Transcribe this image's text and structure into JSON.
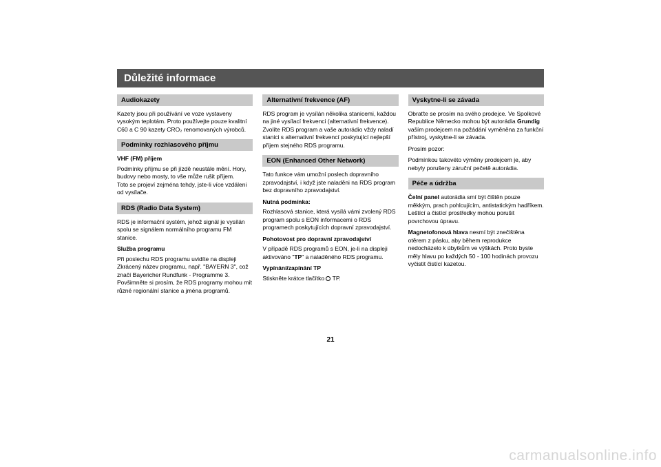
{
  "page": {
    "title": "Důležité informace",
    "number": "21",
    "watermark": "carmanualsonline.info"
  },
  "col1": {
    "h_audio": "Audiokazety",
    "p_audio": "Kazety jsou při používání ve voze vystaveny vysokým teplotám. Proto používejte pouze kvalitní C60 a C 90 kazety CRO₂ renomovaných výrobců.",
    "h_radio": "Podmínky rozhlasového příjmu",
    "sub_vhf": "VHF (FM) příjem",
    "p_vhf1": "Podmínky příjmu se při jízdě neustále mění. Hory, budovy nebo mosty, to vše může rušit příjem.",
    "p_vhf2": "Toto se projeví zejména tehdy, jste-li více vzdáleni od vysílače.",
    "h_rds": "RDS (Radio Data System)",
    "p_rds": "RDS je informační systém, jehož signál je vysílán spolu se signálem normálního programu FM stanice.",
    "sub_sluzba": "Služba programu",
    "p_sluzba": "Při poslechu RDS programu uvidíte na displeji Zkrácený název programu, např. \"BAYERN 3\", což značí Bayericher Rundfunk - Programme 3. Povšimněte si prosím, že RDS programy mohou mít různé regionální stanice a jména programů."
  },
  "col2": {
    "h_af": "Alternativní frekvence (AF)",
    "p_af1": "RDS program je vysílán několika stanicemi, každou na jiné vysílací frekvenci (alternativní frekvence).",
    "p_af2": "Zvolíte RDS program a vaše autorádio vždy naladí stanici s alternativní frekvencí poskytující nejlepší příjem stejného RDS programu.",
    "h_eon": "EON (Enhanced Other Network)",
    "p_eon": "Tato funkce vám umožní poslech dopravního zpravodajství, i když jste naladěni na RDS  program bez dopravního zpravodajství.",
    "sub_nutna": "Nutná podmínka:",
    "p_nutna": "Rozhlasová stanice, která vysílá vámi zvolený RDS program spolu s EON informacemi o RDS programech poskytujících dopravní zpravodajství.",
    "sub_poh": "Pohotovost pro dopravní zpravodajství",
    "p_poh": "V případě RDS programů s EON, je-li na displeji aktivováno \"TP\" a naladěného RDS programu.",
    "sub_vyp": "Vypínání/zapínání TP",
    "p_vyp_pre": "Stiskněte krátce tlačítko ",
    "p_vyp_post": " TP."
  },
  "col3": {
    "h_zav": "Vyskytne-li se závada",
    "p_zav1a": "Obraťte se prosím na svého prodejce. Ve Spolkové Republice Německo mohou být autorádia ",
    "p_zav1_bold": "Grundig",
    "p_zav1b": " vaším prodejcem na požádání vyměněna za funkční přístroj, vyskytne-li se závada.",
    "p_zav2": "Prosím pozor:",
    "p_zav3": "Podmínkou takovéto výměny prodejcem je, aby nebyly porušeny záruční pečetě autorádia.",
    "h_pece": "Péče a údržba",
    "p_pece1_bold": "Čelní panel",
    "p_pece1": " autorádia smí být čištěn pouze měkkým, prach pohlcujícím, antistatickým hadříkem. Leštící a čistící prostředky mohou porušit povrchovou úpravu.",
    "p_pece2_bold": "Magnetofonová hlava",
    "p_pece2": " nesmí být znečištěna otěrem z pásku, aby během reprodukce nedocházelo k úbytkům ve výškách. Proto byste měly hlavu po každých 50 - 100 hodinách provozu vyčistit čistící kazetou."
  }
}
